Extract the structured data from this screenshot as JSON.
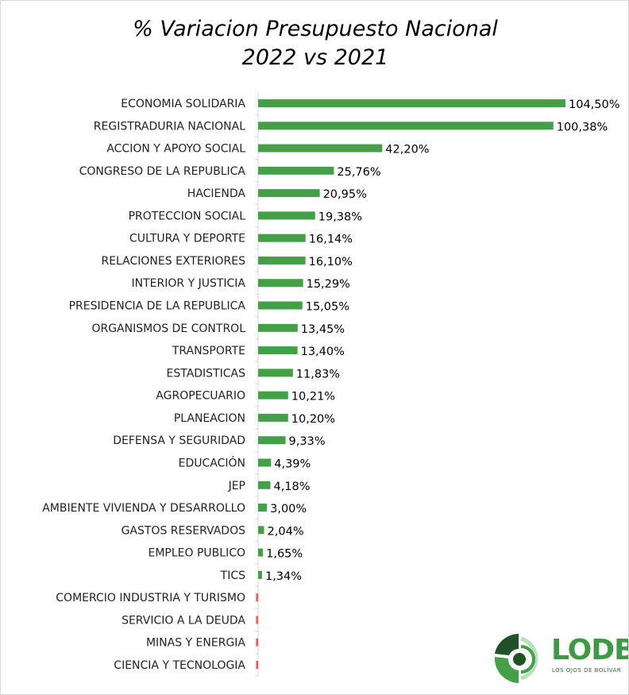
{
  "chart_data": {
    "type": "bar",
    "orientation": "horizontal",
    "title": "% Variacion Presupuesto Nacional",
    "subtitle": "2022 vs 2021",
    "xlabel": "",
    "ylabel": "",
    "grid": false,
    "colors": {
      "positive": "#43a047",
      "negative": "#ff5252"
    },
    "categories": [
      "ECONOMIA SOLIDARIA",
      "REGISTRADURIA NACIONAL",
      "ACCION Y APOYO SOCIAL",
      "CONGRESO DE LA REPUBLICA",
      "HACIENDA",
      "PROTECCION SOCIAL",
      "CULTURA Y DEPORTE",
      "RELACIONES EXTERIORES",
      "INTERIOR Y JUSTICIA",
      "PRESIDENCIA DE LA REPUBLICA",
      "ORGANISMOS DE CONTROL",
      "TRANSPORTE",
      "ESTADISTICAS",
      "AGROPECUARIO",
      "PLANEACION",
      "DEFENSA Y SEGURIDAD",
      "EDUCACIÓN",
      "JEP",
      "AMBIENTE VIVIENDA Y DESARROLLO",
      "GASTOS RESERVADOS",
      "EMPLEO PUBLICO",
      "TICS",
      "COMERCIO INDUSTRIA Y TURISMO",
      "SERVICIO A LA DEUDA",
      "MINAS Y ENERGIA",
      "CIENCIA Y TECNOLOGIA"
    ],
    "values": [
      104.5,
      100.38,
      42.2,
      25.76,
      20.95,
      19.38,
      16.14,
      16.1,
      15.29,
      15.05,
      13.45,
      13.4,
      11.83,
      10.21,
      10.2,
      9.33,
      4.39,
      4.18,
      3.0,
      2.04,
      1.65,
      1.34,
      -0.7,
      -0.7,
      -0.7,
      -0.7
    ],
    "labels": [
      "104,50%",
      "100,38%",
      "42,20%",
      "25,76%",
      "20,95%",
      "19,38%",
      "16,14%",
      "16,10%",
      "15,29%",
      "15,05%",
      "13,45%",
      "13,40%",
      "11,83%",
      "10,21%",
      "10,20%",
      "9,33%",
      "4,39%",
      "4,18%",
      "3,00%",
      "2,04%",
      "1,65%",
      "1,34%",
      "",
      "",
      "",
      ""
    ]
  },
  "logo": {
    "name": "LODB",
    "tagline": "LOS OJOS DE BOLÍVAR"
  }
}
